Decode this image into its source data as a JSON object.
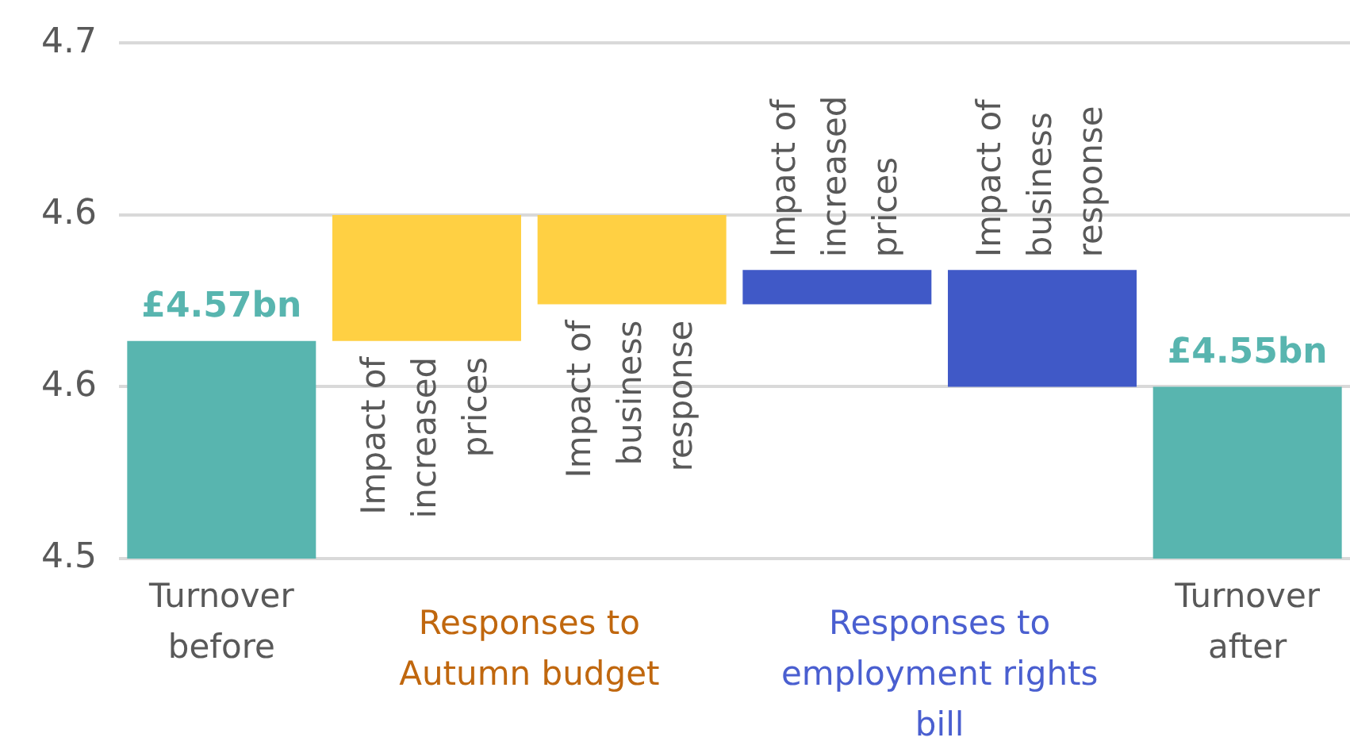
{
  "chart_data": {
    "type": "bar",
    "categories": [
      "Turnover before",
      "Impact of increased prices",
      "Impact of business response",
      "Impact of increased prices",
      "Impact of business response",
      "Turnover after"
    ],
    "values": [
      4.57,
      0.055,
      -0.039,
      0.015,
      -0.051,
      4.55
    ],
    "base": [
      null,
      4.57,
      4.625,
      4.586,
      4.601,
      null
    ],
    "colors": [
      "#58b5af",
      "#ffd043",
      "#ffd043",
      "#4059c7",
      "#4059c7",
      "#58b5af"
    ],
    "value_labels": [
      "£4.57bn",
      null,
      null,
      null,
      null,
      "£4.55bn"
    ],
    "ylim": [
      4.475,
      4.7
    ],
    "yticks": [
      {
        "value": 4.475,
        "label": "4.5"
      },
      {
        "value": 4.55,
        "label": "4.6"
      },
      {
        "value": 4.625,
        "label": "4.6"
      },
      {
        "value": 4.7,
        "label": "4.7"
      }
    ],
    "annotations": [
      "Responses to Autumn budget",
      "Responses to employment rights bill"
    ],
    "grid": "y",
    "legend": false
  }
}
